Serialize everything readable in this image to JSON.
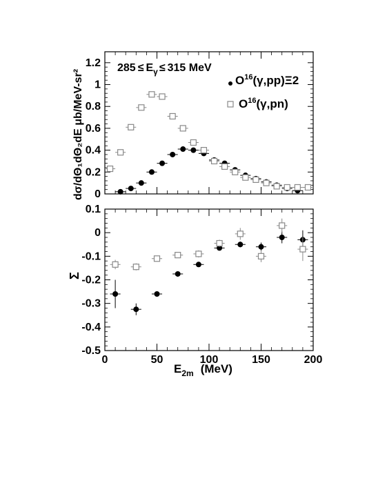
{
  "figure": {
    "top_ylabel": "dσ/dΘ₁dΘ₂dE μb/MeV-sr²",
    "annotation_main": "285",
    "annotation_le1": "≤",
    "annotation_eg": "E",
    "annotation_eg_sub": "γ",
    "annotation_le2": "≤",
    "annotation_tail": "315 MeV",
    "legend_pp_a": "O",
    "legend_pp_sup": "16",
    "legend_pp_b": "(γ,pp)Ξ2",
    "legend_pn_a": "O",
    "legend_pn_sup": "16",
    "legend_pn_b": "(γ,pn)",
    "bottom_ylabel": "Σ",
    "xlabel_main": "E",
    "xlabel_sub": "2m",
    "xlabel_unit": "(MeV)"
  },
  "chart_data": [
    {
      "type": "scatter",
      "panel": "top",
      "xlim": [
        0,
        200
      ],
      "ylim": [
        0,
        1.3
      ],
      "x_ticks": [],
      "y_ticks": [
        "0",
        "0.2",
        "0.4",
        "0.6",
        "0.8",
        "1",
        "1.2"
      ],
      "series": [
        {
          "name": "O16(γ,pp)Ξ2",
          "marker": "filled-circle",
          "color": "#000000",
          "x": [
            15,
            25,
            35,
            45,
            55,
            65,
            75,
            85,
            95,
            105,
            115,
            125,
            135,
            145,
            155,
            165,
            175,
            185
          ],
          "y": [
            0.02,
            0.05,
            0.1,
            0.2,
            0.28,
            0.36,
            0.41,
            0.4,
            0.37,
            0.31,
            0.28,
            0.22,
            0.17,
            0.14,
            0.11,
            0.08,
            0.05,
            0.03
          ]
        },
        {
          "name": "O16(γ,pn)",
          "marker": "open-square",
          "color": "#888888",
          "x": [
            5,
            15,
            25,
            35,
            45,
            55,
            65,
            75,
            85,
            95,
            105,
            115,
            125,
            135,
            145,
            155,
            165,
            175,
            185,
            195
          ],
          "y": [
            0.23,
            0.38,
            0.61,
            0.79,
            0.91,
            0.89,
            0.71,
            0.6,
            0.47,
            0.4,
            0.3,
            0.25,
            0.2,
            0.15,
            0.13,
            0.1,
            0.07,
            0.06,
            0.06,
            0.06
          ]
        }
      ]
    },
    {
      "type": "scatter",
      "panel": "bottom",
      "xlim": [
        0,
        200
      ],
      "ylim": [
        -0.5,
        0.1
      ],
      "x_ticks": [
        "0",
        "50",
        "100",
        "150",
        "200"
      ],
      "y_ticks": [
        "-0.5",
        "-0.4",
        "-0.3",
        "-0.2",
        "-0.1",
        "0",
        "0.1"
      ],
      "series": [
        {
          "name": "O16(γ,pp)Ξ2",
          "marker": "filled-circle",
          "color": "#000000",
          "x": [
            10,
            30,
            50,
            70,
            90,
            110,
            130,
            150,
            170,
            190
          ],
          "y": [
            -0.26,
            -0.325,
            -0.26,
            -0.175,
            -0.135,
            -0.065,
            -0.05,
            -0.06,
            -0.02,
            -0.03
          ],
          "yerr": [
            0.06,
            0.025,
            0.01,
            0.01,
            0.01,
            0.01,
            0.012,
            0.018,
            0.025,
            0.04
          ]
        },
        {
          "name": "O16(γ,pn)",
          "marker": "open-square",
          "color": "#888888",
          "x": [
            10,
            30,
            50,
            70,
            90,
            110,
            130,
            150,
            170,
            190
          ],
          "y": [
            -0.135,
            -0.145,
            -0.11,
            -0.095,
            -0.09,
            -0.045,
            -0.005,
            -0.1,
            0.03,
            -0.07
          ],
          "yerr": [
            0.02,
            0.015,
            0.01,
            0.012,
            0.015,
            0.015,
            0.025,
            0.025,
            0.03,
            0.05
          ]
        }
      ]
    }
  ]
}
